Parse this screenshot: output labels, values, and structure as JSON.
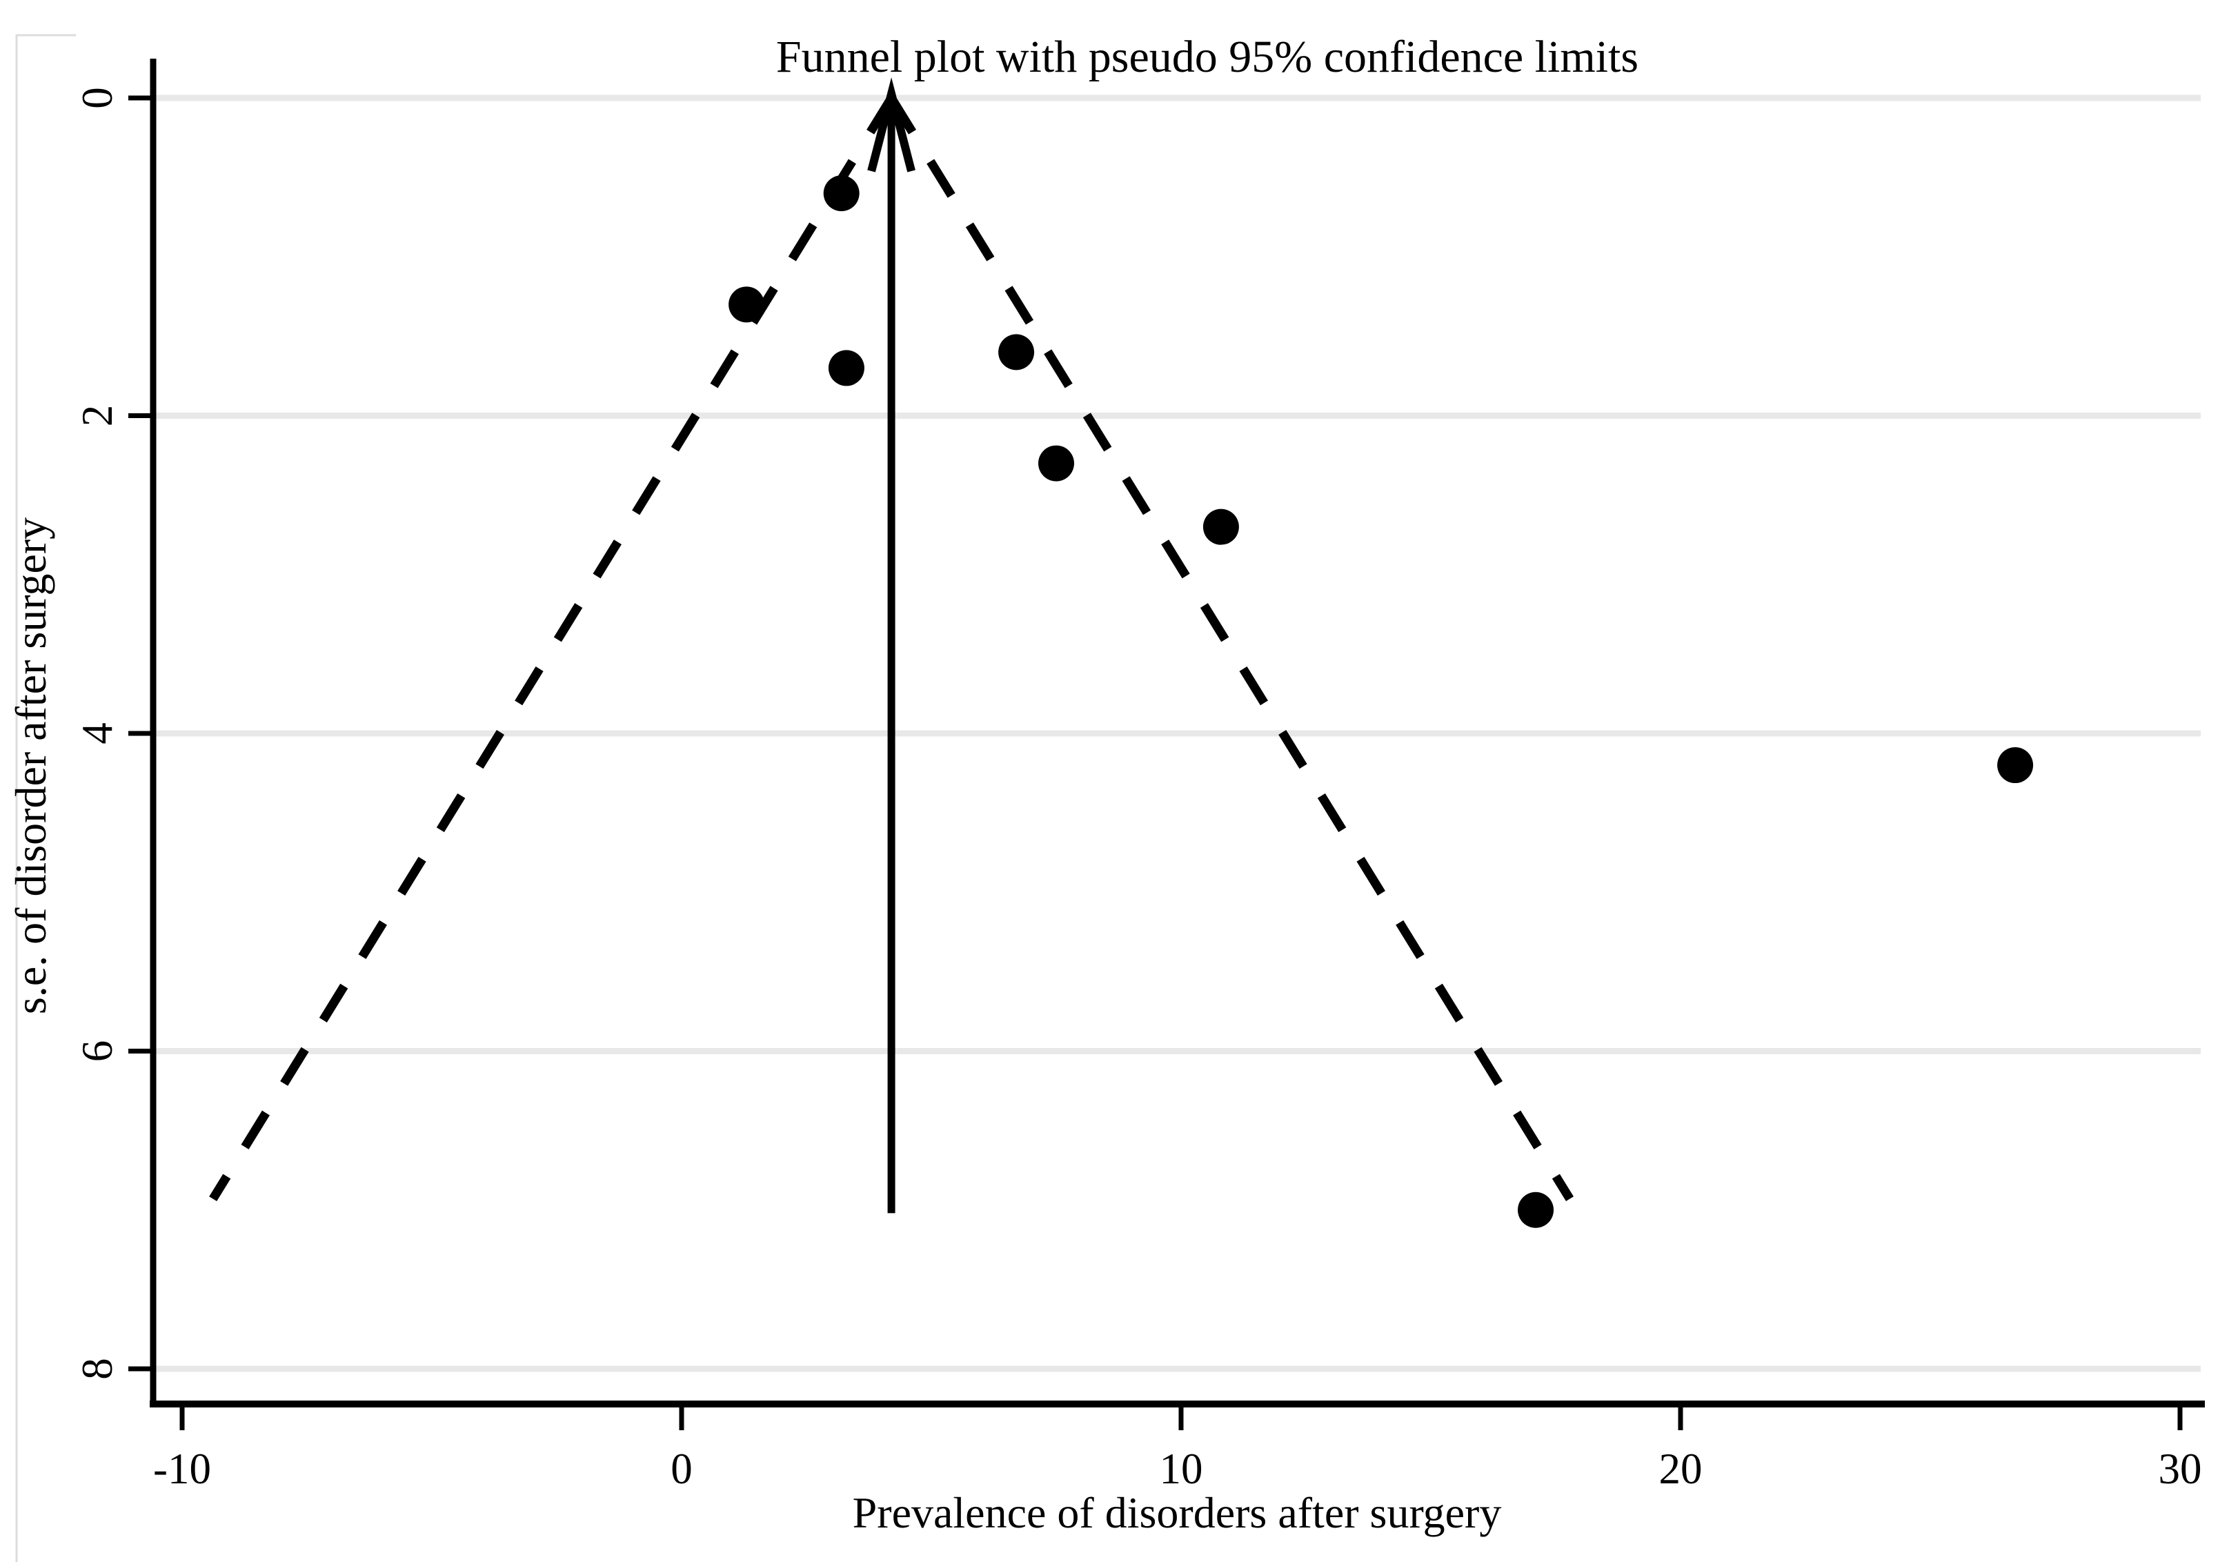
{
  "title": "Funnel plot with pseudo 95% confidence limits",
  "colors": {
    "background": "#ffffff",
    "axis": "#000000",
    "gridline": "#e8e8e8",
    "frame_edge": "#dcdcdc",
    "marker": "#000000",
    "funnel_line": "#000000",
    "center_line": "#000000"
  },
  "chart_data": {
    "type": "scatter",
    "title": "Funnel plot with pseudo 95% confidence limits",
    "xlabel": "Prevalence of disorders after surgery",
    "ylabel": "s.e. of disorder after surgery",
    "x_ticks": [
      -10,
      0,
      10,
      20,
      30
    ],
    "x_tick_labels": [
      "-10",
      "0",
      "10",
      "20",
      "30"
    ],
    "y_ticks": [
      0,
      2,
      4,
      6,
      8
    ],
    "y_tick_labels": [
      "0",
      "2",
      "4",
      "6",
      "8"
    ],
    "xlim": [
      -10.8,
      30.4
    ],
    "ylim": [
      0,
      8.22
    ],
    "y_axis_inverted": true,
    "grid": "horizontal-only",
    "legend": "none",
    "points": [
      {
        "x": 3.2,
        "se": 0.6
      },
      {
        "x": 1.3,
        "se": 1.3
      },
      {
        "x": 3.3,
        "se": 1.7
      },
      {
        "x": 6.7,
        "se": 1.6
      },
      {
        "x": 7.5,
        "se": 2.3
      },
      {
        "x": 10.8,
        "se": 2.7
      },
      {
        "x": 26.7,
        "se": 4.2
      },
      {
        "x": 17.1,
        "se": 7.0
      }
    ],
    "funnel": {
      "pooled_estimate": 4.2,
      "z_multiplier": 1.96,
      "se_line_max": 6.93,
      "line_style": "dashed"
    },
    "center_line": {
      "x": 4.2,
      "se_from": 0,
      "se_to": 7.02,
      "arrow": "up"
    }
  }
}
